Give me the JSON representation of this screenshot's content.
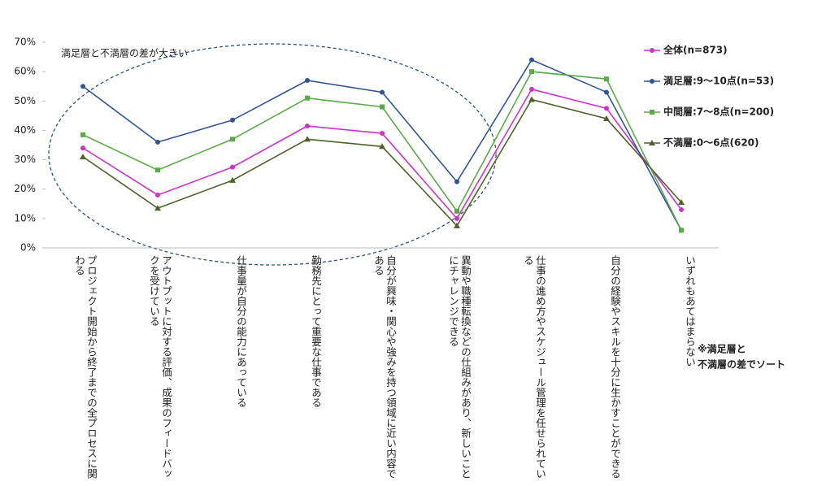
{
  "chart_data": {
    "type": "line",
    "annotation": "満足層と不満層の差が大きい",
    "note": [
      "※満足層と",
      "不満層の差でソート"
    ],
    "categories": [
      "プロジェクト開始から終了までの全プロセスに関わる",
      "アウトプットに対する評価、成果のフィードバックを受けている",
      "仕事量が自分の能力にあっている",
      "勤務先にとって重要な仕事である",
      "自分が興味・関心や強みを持つ領域に近い内容である",
      "異動や職種転換などの仕組みがあり、新しいことにチャレンジできる",
      "仕事の進め方やスケジュール管理を任せられている",
      "自分の経験やスキルを十分に生かすことができる",
      "いずれもあてはまらない"
    ],
    "series": [
      {
        "name": "全体(n=873)",
        "color": "#cc33cc",
        "marker": "circle",
        "values": [
          34,
          18,
          27.5,
          41.5,
          39,
          10,
          54,
          47.5,
          13
        ]
      },
      {
        "name": "満足層:9〜10点(n=53)",
        "color": "#2f5597",
        "marker": "circle",
        "values": [
          55,
          36,
          43.5,
          57,
          53,
          22.5,
          64,
          53,
          6
        ]
      },
      {
        "name": "中間層:7〜8点(n=200)",
        "color": "#5aaa46",
        "marker": "square",
        "values": [
          38.5,
          26.5,
          37,
          51,
          48,
          12.5,
          60,
          57.5,
          6
        ]
      },
      {
        "name": "不満層:0〜6点(620)",
        "color": "#4f6228",
        "marker": "triangle",
        "values": [
          31,
          13.5,
          23,
          37,
          34.5,
          7.5,
          50.5,
          44,
          15.5
        ]
      }
    ],
    "ylim": [
      0,
      70
    ],
    "yticks": [
      {
        "value": 0,
        "label": "0%"
      },
      {
        "value": 10,
        "label": "10%"
      },
      {
        "value": 20,
        "label": "20%"
      },
      {
        "value": 30,
        "label": "30%"
      },
      {
        "value": 40,
        "label": "40%"
      },
      {
        "value": 50,
        "label": "50%"
      },
      {
        "value": 60,
        "label": "60%"
      },
      {
        "value": 70,
        "label": "70%"
      }
    ]
  }
}
